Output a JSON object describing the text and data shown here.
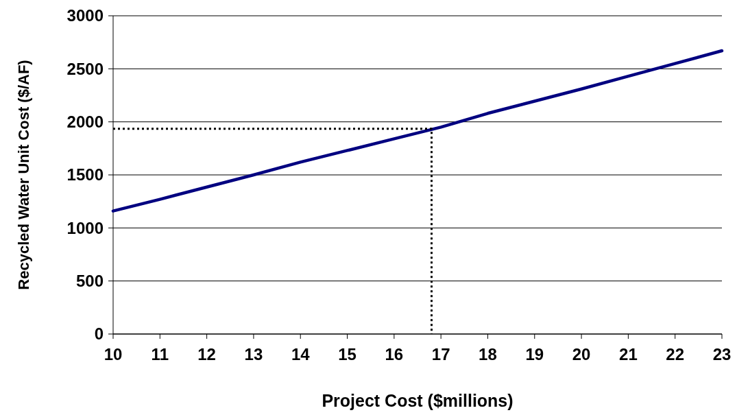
{
  "chart_data": {
    "type": "line",
    "xlabel": "Project Cost ($millions)",
    "ylabel": "Recycled Water Unit Cost ($/AF)",
    "xlim": [
      10,
      23
    ],
    "xticks": [
      10,
      11,
      12,
      13,
      14,
      15,
      16,
      17,
      18,
      19,
      20,
      21,
      22,
      23
    ],
    "ylim": [
      0,
      3000
    ],
    "yticks": [
      0,
      500,
      1000,
      1500,
      2000,
      2500,
      3000
    ],
    "grid": "y",
    "marker": "none",
    "series": [
      {
        "color": "#000080",
        "line_style": "solid",
        "x": [
          10,
          11,
          12,
          13,
          14,
          15,
          16,
          17,
          18,
          19,
          20,
          21,
          22,
          23
        ],
        "values": [
          1160,
          1270,
          1385,
          1500,
          1620,
          1730,
          1840,
          1950,
          2080,
          2195,
          2310,
          2430,
          2550,
          2670
        ]
      },
      {
        "color": "#000000",
        "line_style": "dotted",
        "x": [
          10,
          16.8,
          16.8
        ],
        "values": [
          1935,
          1935,
          0
        ]
      }
    ]
  }
}
